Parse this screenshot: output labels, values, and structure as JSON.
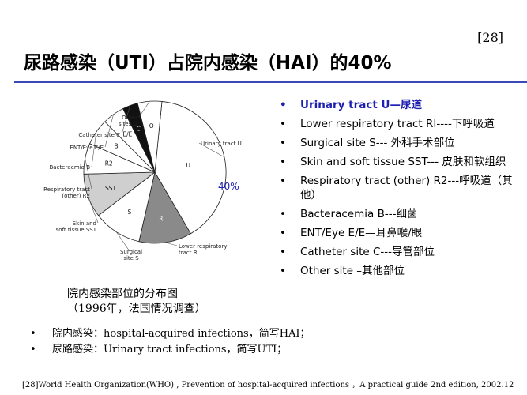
{
  "slide_number": "[28]",
  "title": "尿路感染（UTI）占院内感染（HAI）的40%",
  "chart_data": {
    "type": "pie",
    "title": "",
    "slices": [
      {
        "code": "U",
        "name": "Urinary tract U",
        "value": 40,
        "color": "#ffffff"
      },
      {
        "code": "RI",
        "name": "Lower respiratory tract RI",
        "value": 12,
        "color": "#8a8a8a"
      },
      {
        "code": "S",
        "name": "Surgical site S",
        "value": 11,
        "color": "#ffffff"
      },
      {
        "code": "SST",
        "name": "Skin and soft tissue SST",
        "value": 10,
        "color": "#cfcfcf"
      },
      {
        "code": "R2",
        "name": "Respiratory tract (other) R2",
        "value": 7,
        "color": "#ffffff"
      },
      {
        "code": "B",
        "name": "Bacteraemia B",
        "value": 6,
        "color": "#ffffff"
      },
      {
        "code": "E/E",
        "name": "ENT/Eye E/E",
        "value": 5,
        "color": "#ffffff"
      },
      {
        "code": "C",
        "name": "Catheter site C",
        "value": 3.5,
        "color": "#111111"
      },
      {
        "code": "O",
        "name": "Other sites O",
        "value": 5.5,
        "color": "#ffffff"
      }
    ],
    "callouts": {
      "urinary": "Urinary tract U",
      "lower_resp": [
        "Lower respiratory",
        "tract RI"
      ],
      "surgical": [
        "Surgical",
        "site S"
      ],
      "sst": [
        "Skin and",
        "soft tissue SST"
      ],
      "resp_other": [
        "Respiratory tract",
        "(other) R2"
      ],
      "bacteraemia": "Bacteraemia B",
      "ent": "ENT/Eye E/E",
      "catheter": "Catheter site C",
      "other": [
        "Other",
        "sites O"
      ]
    },
    "highlight_label": "40%",
    "highlight_color": "#1d1fb0"
  },
  "caption": {
    "line1": "院内感染部位的分布图",
    "line2": "（1996年，法国情况调查）"
  },
  "legend_items": [
    {
      "text": "Urinary tract U—尿道",
      "highlight": true
    },
    {
      "text": "Lower respiratory tract RI----下呼吸道",
      "highlight": false
    },
    {
      "text": "Surgical site S--- 外科手术部位",
      "highlight": false
    },
    {
      "text": "Skin and soft tissue SST--- 皮肤和软组织",
      "highlight": false
    },
    {
      "text": "Respiratory tract (other) R2---呼吸道（其他）",
      "highlight": false
    },
    {
      "text": "Bacteracemia B---细菌",
      "highlight": false
    },
    {
      "text": "ENT/Eye E/E—耳鼻喉/眼",
      "highlight": false
    },
    {
      "text": "Catheter site C---导管部位",
      "highlight": false
    },
    {
      "text": "Other site –其他部位",
      "highlight": false
    }
  ],
  "notes": [
    "院内感染：hospital-acquired infections，简写HAI；",
    "尿路感染：Urinary tract infections，简写UTI；"
  ],
  "bullet_glyph": "•",
  "footnote": "[28]World Health Organization(WHO) , Prevention of hospital-acquired infections ，A practical guide 2nd edition, 2002.12",
  "accent_color": "#3a47b6"
}
